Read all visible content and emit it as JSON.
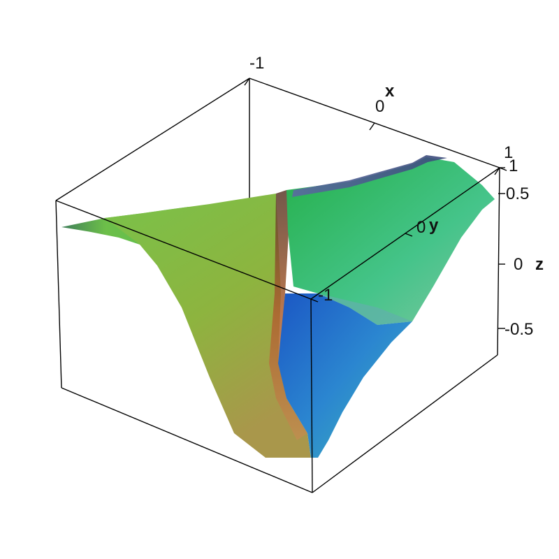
{
  "chart_data": {
    "type": "surface",
    "title": "",
    "axes": {
      "x": {
        "label": "x",
        "range": [
          -1,
          1
        ],
        "tick_labels": [
          "-1",
          "0",
          "1"
        ]
      },
      "y": {
        "label": "y",
        "range": [
          -1,
          1
        ],
        "tick_labels": [
          "-1",
          "0",
          "1"
        ]
      },
      "z": {
        "label": "z",
        "range": [
          -0.8,
          0.8
        ],
        "tick_labels": [
          "-0.5",
          "0",
          "0.5",
          "1"
        ]
      }
    },
    "grid": false,
    "box": true,
    "surface": {
      "shape": "twisted saddle: surface rises on one side of the diagonal and falls on the other, with a sharp fold near the centre",
      "colors": {
        "high": "#3dbf5a",
        "mid_left": "#8cbf3f",
        "low_left": "#a89a4a",
        "mid_right": "#3ec9a0",
        "low_right": "#2a7fd0",
        "crease": "#7a4a30",
        "edge": "#4a5a8a"
      }
    }
  }
}
